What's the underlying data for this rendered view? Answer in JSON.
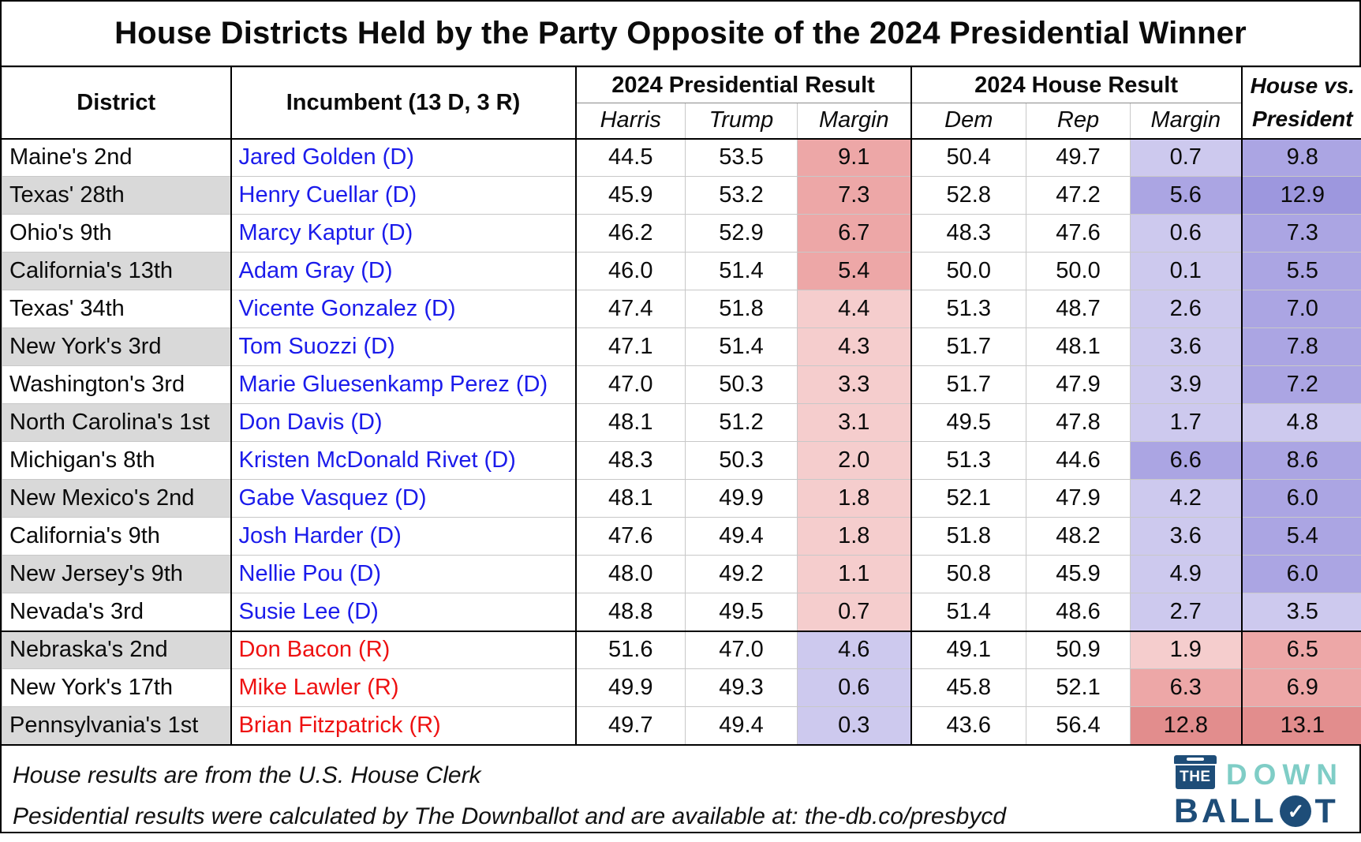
{
  "title": "House Districts Held by the Party Opposite of the 2024 Presidential Winner",
  "header": {
    "district": "District",
    "incumbent": "Incumbent (13 D, 3 R)",
    "presidential_group": "2024 Presidential Result",
    "house_group": "2024 House Result",
    "house_vs_president": [
      "House vs.",
      "President"
    ],
    "subheaders": [
      "Harris",
      "Trump",
      "Margin",
      "Dem",
      "Rep",
      "Margin"
    ]
  },
  "chart_data": {
    "type": "table",
    "title": "House Districts Held by the Party Opposite of the 2024 Presidential Winner",
    "column_groups": [
      "2024 Presidential Result",
      "2024 House Result"
    ],
    "columns": [
      "District",
      "Incumbent",
      "Harris",
      "Trump",
      "Pres Margin",
      "Dem",
      "Rep",
      "House Margin",
      "House vs. President"
    ],
    "rows": [
      {
        "district": "Maine's 2nd",
        "incumbent": "Jared Golden (D)",
        "party": "D",
        "harris": "44.5",
        "trump": "53.5",
        "pres_margin": "9.1",
        "pres_winner": "R",
        "dem": "50.4",
        "rep": "49.7",
        "house_margin": "0.7",
        "house_winner": "D",
        "house_vs_president": "9.8"
      },
      {
        "district": "Texas' 28th",
        "incumbent": "Henry Cuellar (D)",
        "party": "D",
        "harris": "45.9",
        "trump": "53.2",
        "pres_margin": "7.3",
        "pres_winner": "R",
        "dem": "52.8",
        "rep": "47.2",
        "house_margin": "5.6",
        "house_winner": "D",
        "house_vs_president": "12.9"
      },
      {
        "district": "Ohio's 9th",
        "incumbent": "Marcy Kaptur (D)",
        "party": "D",
        "harris": "46.2",
        "trump": "52.9",
        "pres_margin": "6.7",
        "pres_winner": "R",
        "dem": "48.3",
        "rep": "47.6",
        "house_margin": "0.6",
        "house_winner": "D",
        "house_vs_president": "7.3"
      },
      {
        "district": "California's 13th",
        "incumbent": "Adam Gray (D)",
        "party": "D",
        "harris": "46.0",
        "trump": "51.4",
        "pres_margin": "5.4",
        "pres_winner": "R",
        "dem": "50.0",
        "rep": "50.0",
        "house_margin": "0.1",
        "house_winner": "D",
        "house_vs_president": "5.5"
      },
      {
        "district": "Texas' 34th",
        "incumbent": "Vicente Gonzalez (D)",
        "party": "D",
        "harris": "47.4",
        "trump": "51.8",
        "pres_margin": "4.4",
        "pres_winner": "R",
        "dem": "51.3",
        "rep": "48.7",
        "house_margin": "2.6",
        "house_winner": "D",
        "house_vs_president": "7.0"
      },
      {
        "district": "New York's 3rd",
        "incumbent": "Tom Suozzi (D)",
        "party": "D",
        "harris": "47.1",
        "trump": "51.4",
        "pres_margin": "4.3",
        "pres_winner": "R",
        "dem": "51.7",
        "rep": "48.1",
        "house_margin": "3.6",
        "house_winner": "D",
        "house_vs_president": "7.8"
      },
      {
        "district": "Washington's 3rd",
        "incumbent": "Marie Gluesenkamp Perez (D)",
        "party": "D",
        "harris": "47.0",
        "trump": "50.3",
        "pres_margin": "3.3",
        "pres_winner": "R",
        "dem": "51.7",
        "rep": "47.9",
        "house_margin": "3.9",
        "house_winner": "D",
        "house_vs_president": "7.2"
      },
      {
        "district": "North Carolina's 1st",
        "incumbent": "Don Davis (D)",
        "party": "D",
        "harris": "48.1",
        "trump": "51.2",
        "pres_margin": "3.1",
        "pres_winner": "R",
        "dem": "49.5",
        "rep": "47.8",
        "house_margin": "1.7",
        "house_winner": "D",
        "house_vs_president": "4.8"
      },
      {
        "district": "Michigan's 8th",
        "incumbent": "Kristen McDonald Rivet (D)",
        "party": "D",
        "harris": "48.3",
        "trump": "50.3",
        "pres_margin": "2.0",
        "pres_winner": "R",
        "dem": "51.3",
        "rep": "44.6",
        "house_margin": "6.6",
        "house_winner": "D",
        "house_vs_president": "8.6"
      },
      {
        "district": "New Mexico's 2nd",
        "incumbent": "Gabe Vasquez (D)",
        "party": "D",
        "harris": "48.1",
        "trump": "49.9",
        "pres_margin": "1.8",
        "pres_winner": "R",
        "dem": "52.1",
        "rep": "47.9",
        "house_margin": "4.2",
        "house_winner": "D",
        "house_vs_president": "6.0"
      },
      {
        "district": "California's 9th",
        "incumbent": "Josh Harder (D)",
        "party": "D",
        "harris": "47.6",
        "trump": "49.4",
        "pres_margin": "1.8",
        "pres_winner": "R",
        "dem": "51.8",
        "rep": "48.2",
        "house_margin": "3.6",
        "house_winner": "D",
        "house_vs_president": "5.4"
      },
      {
        "district": "New Jersey's 9th",
        "incumbent": "Nellie Pou (D)",
        "party": "D",
        "harris": "48.0",
        "trump": "49.2",
        "pres_margin": "1.1",
        "pres_winner": "R",
        "dem": "50.8",
        "rep": "45.9",
        "house_margin": "4.9",
        "house_winner": "D",
        "house_vs_president": "6.0"
      },
      {
        "district": "Nevada's 3rd",
        "incumbent": "Susie Lee (D)",
        "party": "D",
        "harris": "48.8",
        "trump": "49.5",
        "pres_margin": "0.7",
        "pres_winner": "R",
        "dem": "51.4",
        "rep": "48.6",
        "house_margin": "2.7",
        "house_winner": "D",
        "house_vs_president": "3.5"
      },
      {
        "district": "Nebraska's 2nd",
        "incumbent": "Don Bacon (R)",
        "party": "R",
        "harris": "51.6",
        "trump": "47.0",
        "pres_margin": "4.6",
        "pres_winner": "D",
        "dem": "49.1",
        "rep": "50.9",
        "house_margin": "1.9",
        "house_winner": "R",
        "house_vs_president": "6.5"
      },
      {
        "district": "New York's 17th",
        "incumbent": "Mike Lawler (R)",
        "party": "R",
        "harris": "49.9",
        "trump": "49.3",
        "pres_margin": "0.6",
        "pres_winner": "D",
        "dem": "45.8",
        "rep": "52.1",
        "house_margin": "6.3",
        "house_winner": "R",
        "house_vs_president": "6.9"
      },
      {
        "district": "Pennsylvania's 1st",
        "incumbent": "Brian Fitzpatrick (R)",
        "party": "R",
        "harris": "49.7",
        "trump": "49.4",
        "pres_margin": "0.3",
        "pres_winner": "D",
        "dem": "43.6",
        "rep": "56.4",
        "house_margin": "12.8",
        "house_winner": "R",
        "house_vs_president": "13.1"
      }
    ]
  },
  "footnotes": [
    "House results are from the U.S. House Clerk",
    "Pesidential results were calculated by The Downballot and are available at: the-db.co/presbycd"
  ],
  "logo": {
    "the": "THE",
    "down": "DOWN",
    "ballot_prefix": "BALL",
    "ballot_suffix": "T",
    "check": "✓"
  },
  "colors": {
    "dem_text": "#1b1beb",
    "rep_text": "#ee1111",
    "alt_row": "#d9d9d9",
    "red_light": "#f5cdcd",
    "red_medium": "#eda7a7",
    "red_dark": "#e28d8d",
    "purple_light": "#cdc9ee",
    "purple_medium": "#aba5e3",
    "purple_dark": "#9d97de",
    "logo_navy": "#1e4d78",
    "logo_teal": "#7fcdc6"
  }
}
